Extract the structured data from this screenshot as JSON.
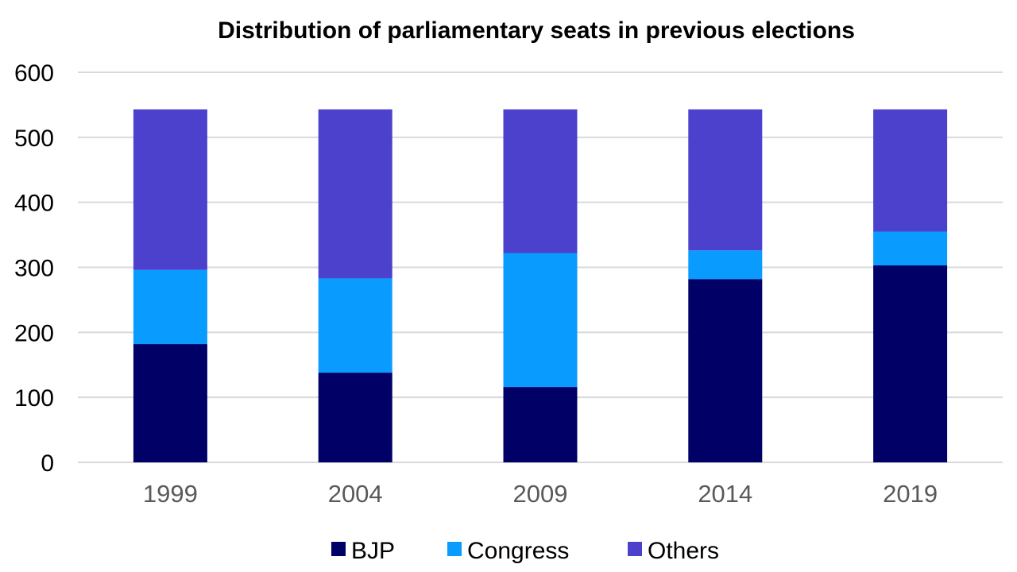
{
  "chart_data": {
    "type": "bar",
    "stacked": true,
    "title": "Distribution of parliamentary seats in previous elections",
    "xlabel": "",
    "ylabel": "",
    "categories": [
      "1999",
      "2004",
      "2009",
      "2014",
      "2019"
    ],
    "series": [
      {
        "name": "BJP",
        "color": "#000066",
        "values": [
          182,
          138,
          116,
          282,
          303
        ]
      },
      {
        "name": "Congress",
        "color": "#0a9bff",
        "values": [
          114,
          145,
          206,
          44,
          52
        ]
      },
      {
        "name": "Others",
        "color": "#4b41cd",
        "values": [
          247,
          260,
          221,
          217,
          188
        ]
      }
    ],
    "ylim": [
      0,
      600
    ],
    "yticks": [
      0,
      100,
      200,
      300,
      400,
      500,
      600
    ],
    "grid": true,
    "legend_position": "bottom"
  }
}
